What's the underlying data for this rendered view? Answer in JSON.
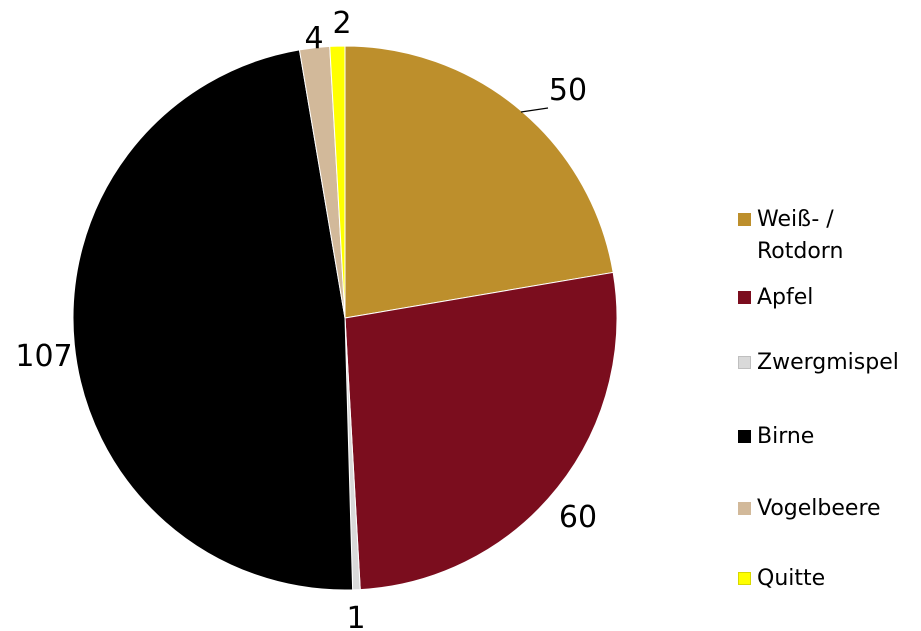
{
  "chart_data": {
    "type": "pie",
    "title": "",
    "start_angle_deg": 0,
    "direction": "clockwise",
    "slices": [
      {
        "label": "Weiß- /\nRotdorn",
        "value": 50,
        "color": "#bd8f2c",
        "value_label": "50"
      },
      {
        "label": "Apfel",
        "value": 60,
        "color": "#7b0d1e",
        "value_label": "60"
      },
      {
        "label": "Zwergmispel",
        "value": 1,
        "color": "#d9d9d9",
        "value_label": "1"
      },
      {
        "label": "Birne",
        "value": 107,
        "color": "#000000",
        "value_label": "107"
      },
      {
        "label": "Vogelbeere",
        "value": 4,
        "color": "#d2b99a",
        "value_label": "4"
      },
      {
        "label": "Quitte",
        "value": 2,
        "color": "#ffff00",
        "value_label": "2"
      }
    ],
    "legend_position": "right"
  }
}
